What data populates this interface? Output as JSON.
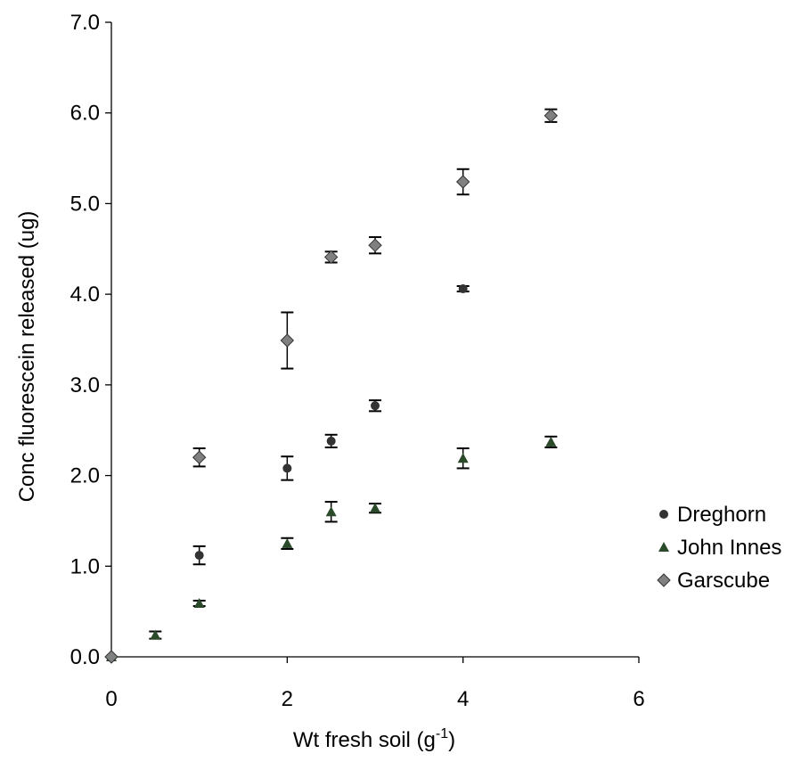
{
  "chart_data": {
    "type": "scatter",
    "xlabel": "Wt fresh soil (g",
    "xlabel_sup": "-1",
    "xlabel_close": ")",
    "ylabel": "Conc fluorescein released (ug)",
    "xlim": [
      0,
      6
    ],
    "ylim": [
      0,
      7
    ],
    "x_ticks": [
      "0",
      "2",
      "4",
      "6"
    ],
    "y_ticks": [
      "0.0",
      "1.0",
      "2.0",
      "3.0",
      "4.0",
      "5.0",
      "6.0",
      "7.0"
    ],
    "grid": false,
    "legend_position": "right",
    "series": [
      {
        "name": "Dreghorn",
        "marker": "circle",
        "color": "#333333",
        "points": [
          {
            "x": 0,
            "y": 0.0,
            "err": 0.0
          },
          {
            "x": 1,
            "y": 1.12,
            "err": 0.1
          },
          {
            "x": 2,
            "y": 2.08,
            "err": 0.13
          },
          {
            "x": 2.5,
            "y": 2.38,
            "err": 0.07
          },
          {
            "x": 3,
            "y": 2.77,
            "err": 0.06
          },
          {
            "x": 4,
            "y": 4.06,
            "err": 0.03
          }
        ]
      },
      {
        "name": "John Innes",
        "marker": "triangle",
        "color": "#2a4a2a",
        "points": [
          {
            "x": 0,
            "y": 0.0,
            "err": 0.0
          },
          {
            "x": 0.5,
            "y": 0.24,
            "err": 0.04
          },
          {
            "x": 1,
            "y": 0.59,
            "err": 0.03
          },
          {
            "x": 2,
            "y": 1.25,
            "err": 0.06
          },
          {
            "x": 2.5,
            "y": 1.6,
            "err": 0.11
          },
          {
            "x": 3,
            "y": 1.64,
            "err": 0.05
          },
          {
            "x": 4,
            "y": 2.19,
            "err": 0.11
          },
          {
            "x": 5,
            "y": 2.37,
            "err": 0.06
          }
        ]
      },
      {
        "name": "Garscube",
        "marker": "diamond",
        "color": "#808080",
        "points": [
          {
            "x": 0,
            "y": 0.0,
            "err": 0.0
          },
          {
            "x": 1,
            "y": 2.2,
            "err": 0.1
          },
          {
            "x": 2,
            "y": 3.49,
            "err": 0.31
          },
          {
            "x": 2.5,
            "y": 4.41,
            "err": 0.06
          },
          {
            "x": 3,
            "y": 4.54,
            "err": 0.09
          },
          {
            "x": 4,
            "y": 5.24,
            "err": 0.14
          },
          {
            "x": 5,
            "y": 5.97,
            "err": 0.07
          }
        ]
      }
    ]
  }
}
